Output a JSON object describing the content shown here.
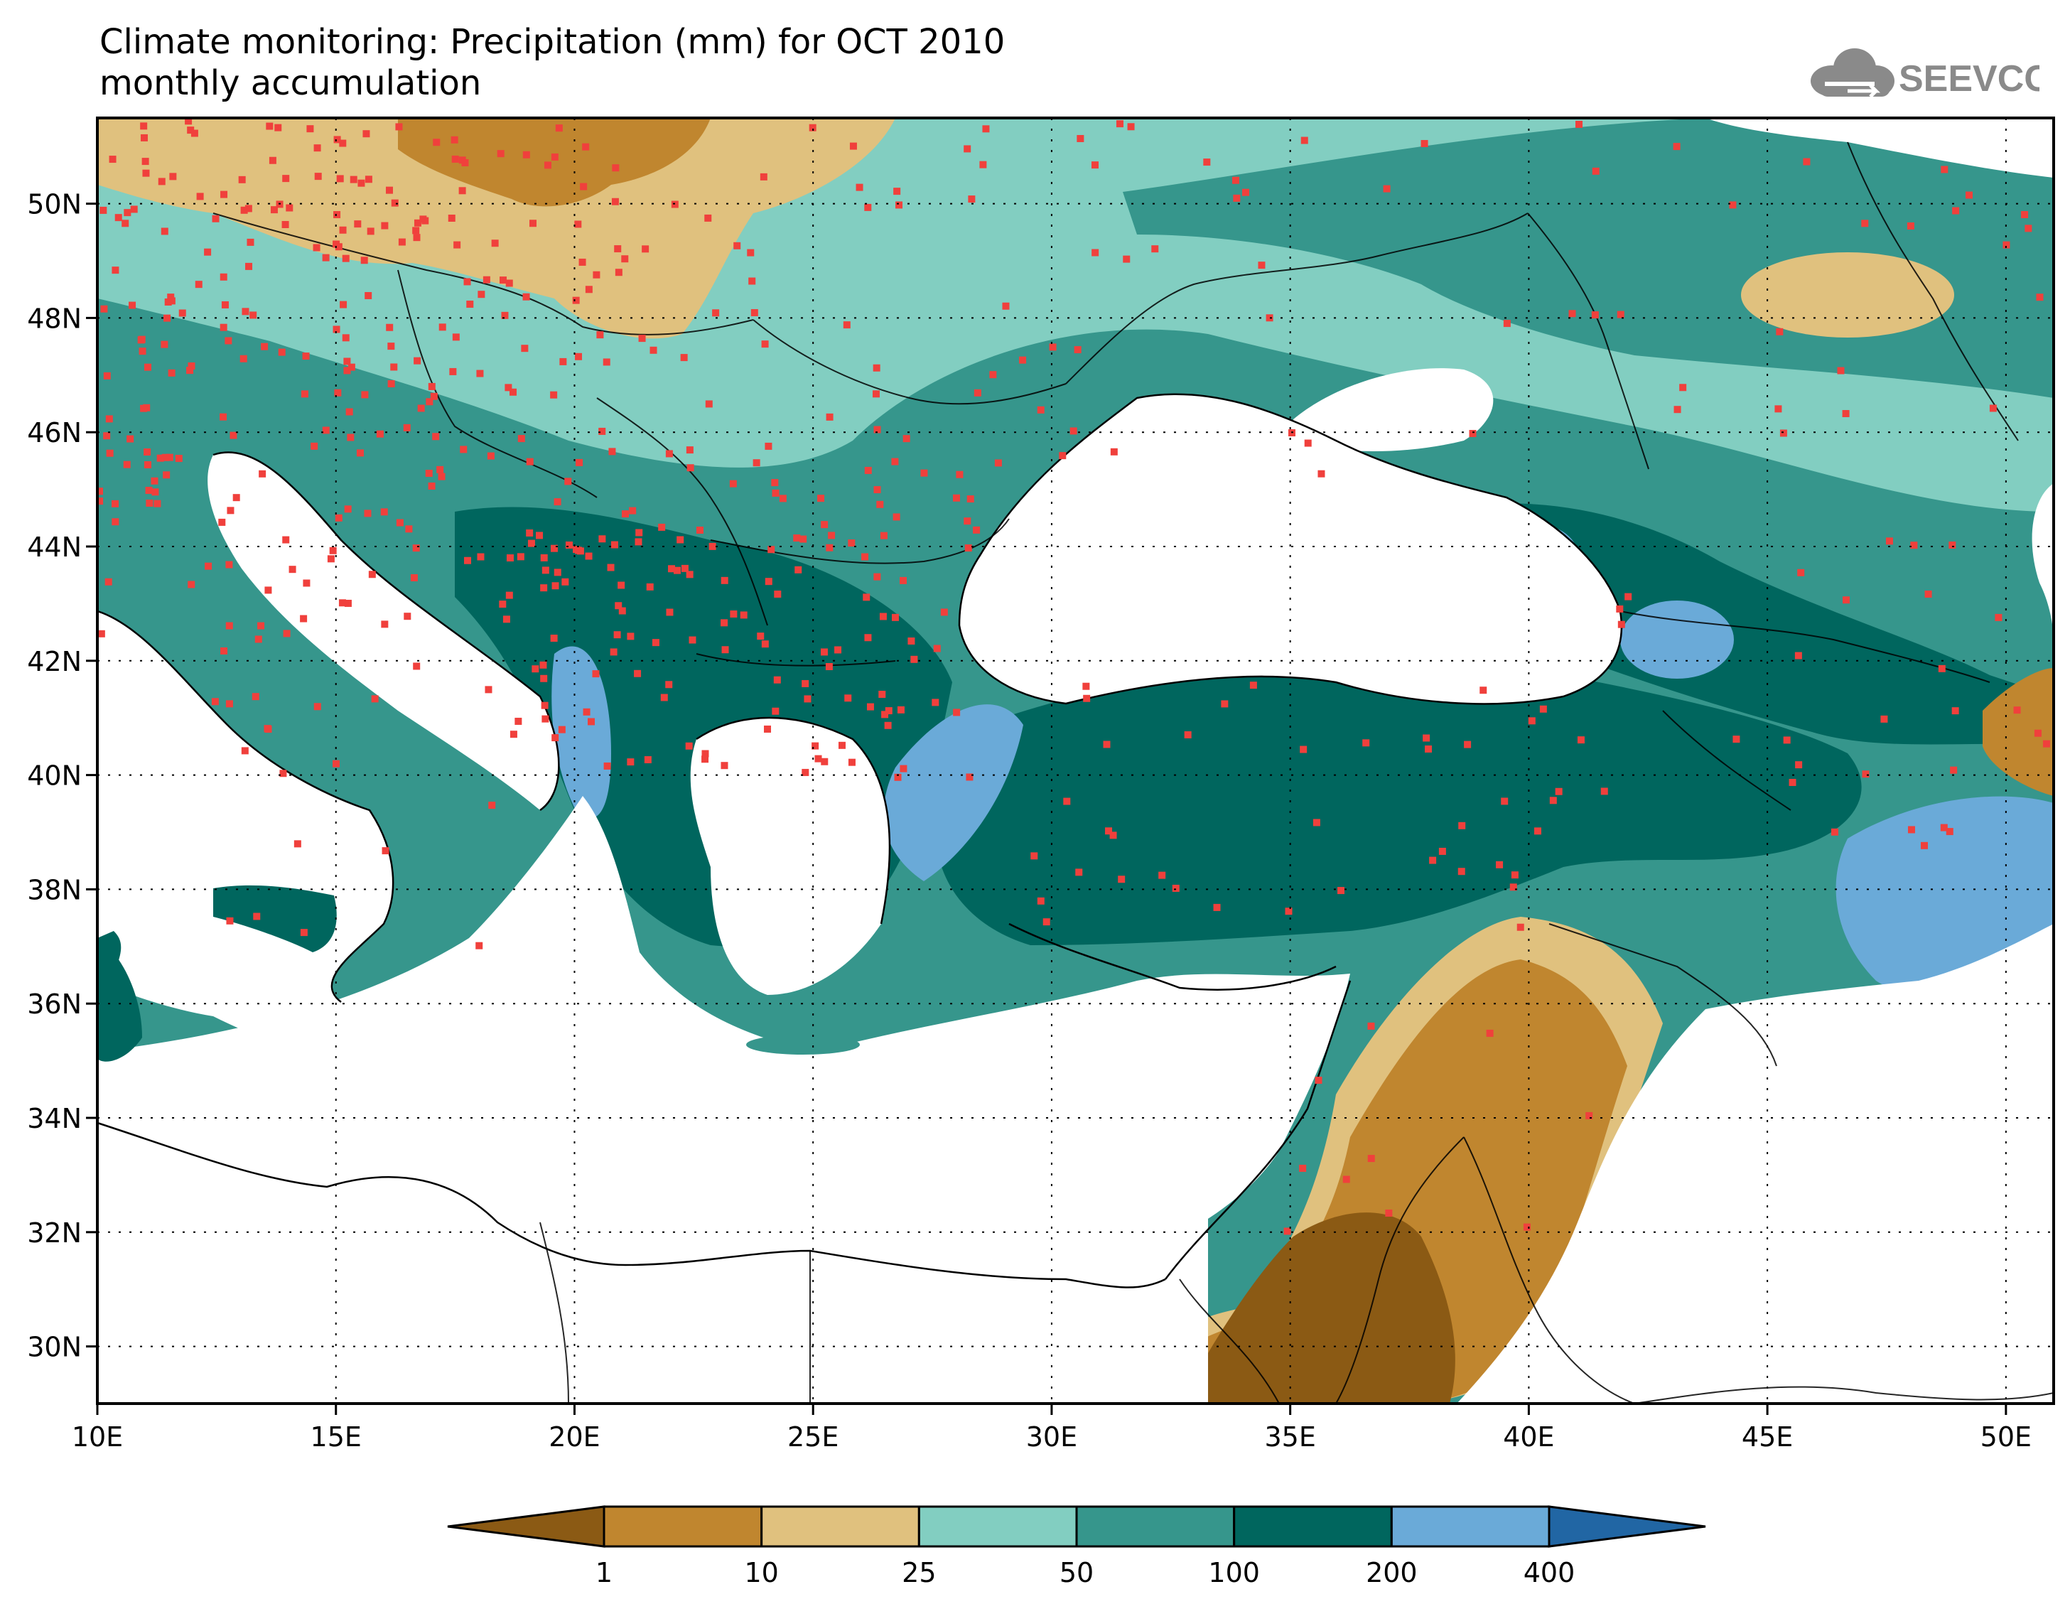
{
  "title": {
    "line1": "Climate monitoring: Precipitation (mm) for OCT 2010",
    "line2": "monthly accumulation"
  },
  "logo": {
    "text": "SEEVCCC",
    "icon": "cloud-icon",
    "color": "#8a8a8a"
  },
  "map": {
    "lon_range": [
      10,
      51
    ],
    "lat_range": [
      29,
      51.5
    ],
    "x_ticks": [
      {
        "value": 10,
        "label": "10E"
      },
      {
        "value": 15,
        "label": "15E"
      },
      {
        "value": 20,
        "label": "20E"
      },
      {
        "value": 25,
        "label": "25E"
      },
      {
        "value": 30,
        "label": "30E"
      },
      {
        "value": 35,
        "label": "35E"
      },
      {
        "value": 40,
        "label": "40E"
      },
      {
        "value": 45,
        "label": "45E"
      },
      {
        "value": 50,
        "label": "50E"
      }
    ],
    "y_ticks": [
      {
        "value": 30,
        "label": "30N"
      },
      {
        "value": 32,
        "label": "32N"
      },
      {
        "value": 34,
        "label": "34N"
      },
      {
        "value": 36,
        "label": "36N"
      },
      {
        "value": 38,
        "label": "38N"
      },
      {
        "value": 40,
        "label": "40N"
      },
      {
        "value": 42,
        "label": "42N"
      },
      {
        "value": 44,
        "label": "44N"
      },
      {
        "value": 46,
        "label": "46N"
      },
      {
        "value": 48,
        "label": "48N"
      },
      {
        "value": 50,
        "label": "50N"
      }
    ],
    "grid": "dotted"
  },
  "legend": {
    "levels": [
      "1",
      "10",
      "25",
      "50",
      "100",
      "200",
      "400"
    ],
    "colors": [
      "#8b5a14",
      "#c0862f",
      "#e0c17e",
      "#82cec1",
      "#36968c",
      "#00665e",
      "#6aaad8",
      "#2166a4"
    ]
  }
}
